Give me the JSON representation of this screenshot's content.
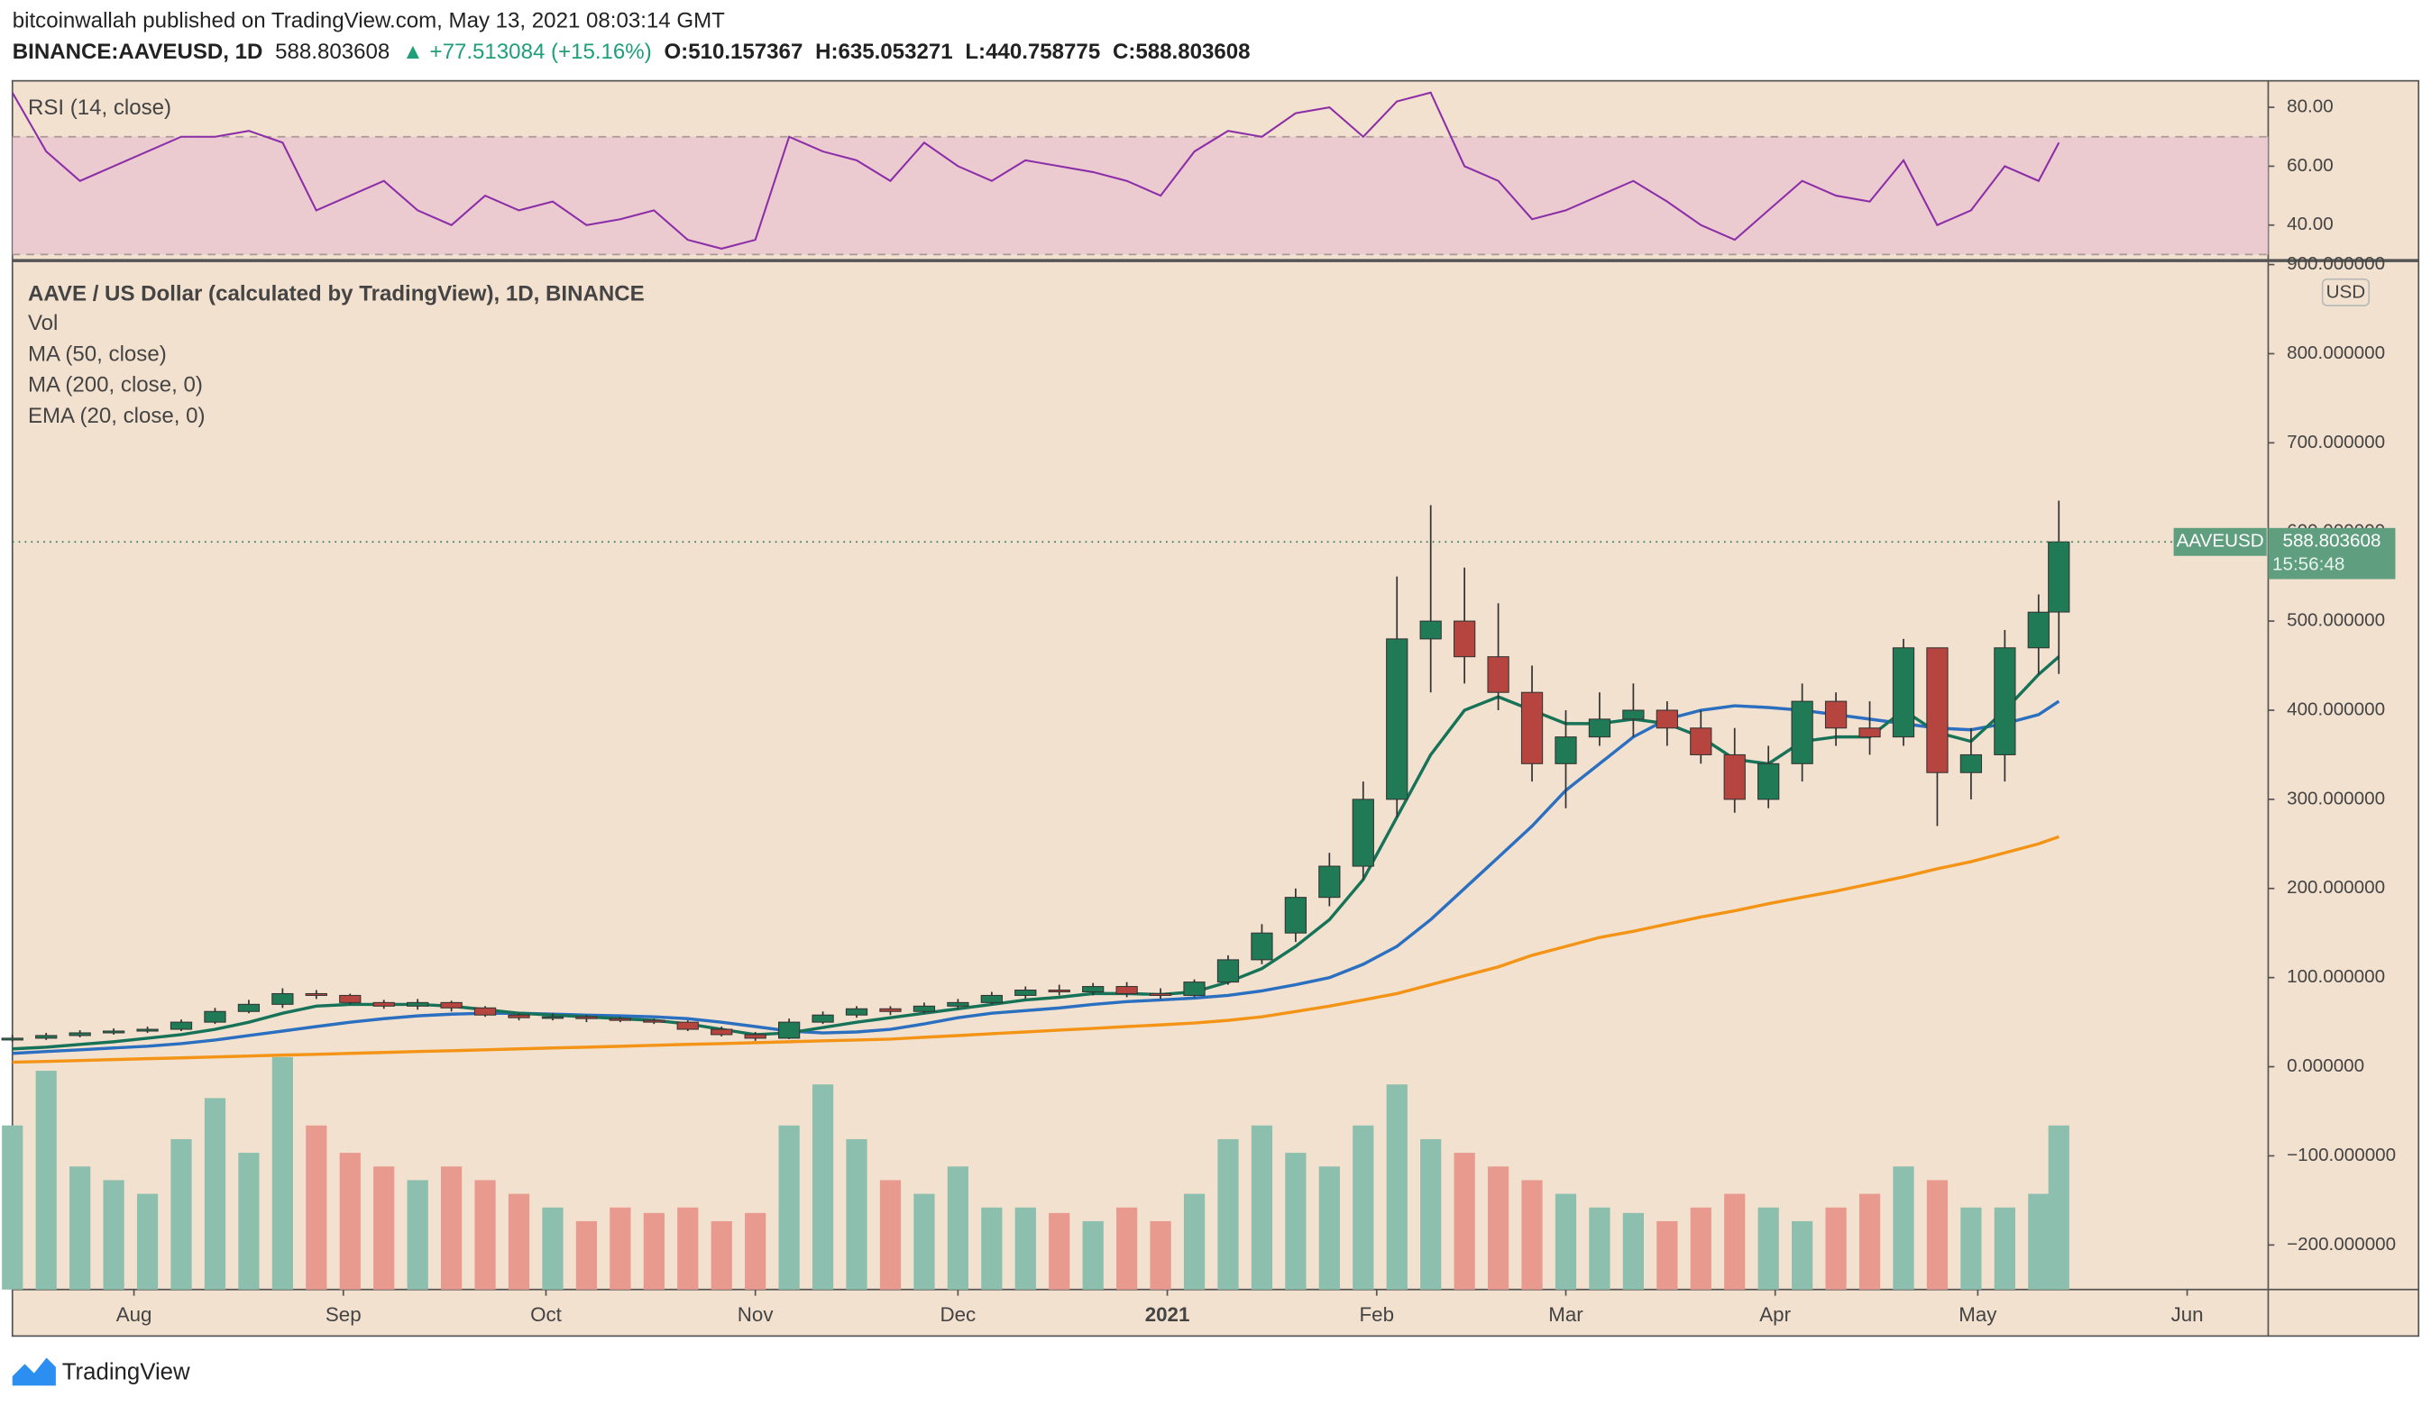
{
  "header": {
    "publisher": "bitcoinwallah published on TradingView.com, May 13, 2021 08:03:14 GMT",
    "symbol": "BINANCE:AAVEUSD, 1D",
    "last": "588.803608",
    "change": "▲ +77.513084 (+15.16%)",
    "open": "O:510.157367",
    "high": "H:635.053271",
    "low": "L:440.758775",
    "close": "C:588.803608"
  },
  "footer": {
    "brand": "TradingView"
  },
  "chart_data": [
    {
      "type": "candlestick",
      "title": "AAVE / US Dollar (calculated by TradingView), 1D, BINANCE",
      "legend": [
        "Vol",
        "MA (50, close)",
        "MA (200, close, 0)",
        "EMA (20, close, 0)"
      ],
      "currency": "USD",
      "price_tag": {
        "symbol": "AAVEUSD",
        "value": "588.803608",
        "countdown": "15:56:48"
      },
      "up_color": "#1f7a55",
      "down_color": "#b5453e",
      "volume_up_color": "#8cbfad",
      "volume_down_color": "#e89a8f",
      "grid": false,
      "xlim": [
        0,
        334
      ],
      "xticks": [
        {
          "value": 18,
          "label": "Aug"
        },
        {
          "value": 49,
          "label": "Sep"
        },
        {
          "value": 79,
          "label": "Oct"
        },
        {
          "value": 110,
          "label": "Nov"
        },
        {
          "value": 140,
          "label": "Dec"
        },
        {
          "value": 171,
          "label": "2021",
          "bold": true
        },
        {
          "value": 202,
          "label": "Feb"
        },
        {
          "value": 230,
          "label": "Mar"
        },
        {
          "value": 261,
          "label": "Apr"
        },
        {
          "value": 291,
          "label": "May"
        },
        {
          "value": 322,
          "label": "Jun"
        }
      ],
      "ylim": [
        -250,
        901
      ],
      "yticks": [
        {
          "value": -200,
          "label": "−200.000000"
        },
        {
          "value": -100,
          "label": "−100.000000"
        },
        {
          "value": 0,
          "label": "0.000000"
        },
        {
          "value": 100,
          "label": "100.000000"
        },
        {
          "value": 200,
          "label": "200.000000"
        },
        {
          "value": 300,
          "label": "300.000000"
        },
        {
          "value": 400,
          "label": "400.000000"
        },
        {
          "value": 500,
          "label": "500.000000"
        },
        {
          "value": 600,
          "label": "600.000000"
        },
        {
          "value": 700,
          "label": "700.000000"
        },
        {
          "value": 800,
          "label": "800.000000"
        },
        {
          "value": 900,
          "label": "900.000000"
        }
      ],
      "x": [
        0,
        5,
        10,
        15,
        20,
        25,
        30,
        35,
        40,
        45,
        50,
        55,
        60,
        65,
        70,
        75,
        80,
        85,
        90,
        95,
        100,
        105,
        110,
        115,
        120,
        125,
        130,
        135,
        140,
        145,
        150,
        155,
        160,
        165,
        170,
        175,
        180,
        185,
        190,
        195,
        200,
        205,
        210,
        215,
        220,
        225,
        230,
        235,
        240,
        245,
        250,
        255,
        260,
        265,
        270,
        275,
        280,
        285,
        290,
        295,
        300,
        303
      ],
      "open": [
        30,
        32,
        35,
        38,
        40,
        42,
        50,
        62,
        70,
        82,
        80,
        72,
        68,
        72,
        66,
        58,
        55,
        56,
        54,
        52,
        50,
        42,
        36,
        32,
        50,
        58,
        65,
        62,
        68,
        72,
        80,
        86,
        84,
        90,
        82,
        80,
        95,
        120,
        150,
        190,
        225,
        300,
        480,
        500,
        460,
        420,
        340,
        370,
        390,
        400,
        380,
        350,
        300,
        340,
        410,
        380,
        370,
        470,
        330,
        350,
        470,
        510.157367
      ],
      "high": [
        36,
        38,
        41,
        43,
        45,
        53,
        66,
        75,
        88,
        86,
        82,
        75,
        76,
        74,
        68,
        60,
        60,
        58,
        56,
        54,
        52,
        45,
        39,
        54,
        62,
        68,
        68,
        72,
        76,
        84,
        90,
        92,
        94,
        95,
        88,
        98,
        125,
        160,
        200,
        240,
        320,
        550,
        630,
        560,
        520,
        450,
        400,
        420,
        430,
        410,
        400,
        380,
        360,
        430,
        420,
        410,
        480,
        470,
        380,
        490,
        530,
        635.053271
      ],
      "low": [
        28,
        30,
        33,
        36,
        38,
        40,
        48,
        60,
        66,
        76,
        70,
        65,
        64,
        62,
        56,
        52,
        52,
        50,
        50,
        48,
        40,
        34,
        29,
        31,
        48,
        55,
        58,
        60,
        65,
        70,
        76,
        80,
        80,
        78,
        76,
        78,
        92,
        115,
        140,
        180,
        210,
        280,
        420,
        430,
        400,
        320,
        290,
        360,
        370,
        360,
        340,
        285,
        290,
        320,
        360,
        350,
        360,
        270,
        300,
        320,
        440,
        440.758775
      ],
      "close": [
        32,
        35,
        38,
        40,
        42,
        50,
        62,
        70,
        82,
        80,
        72,
        68,
        72,
        66,
        58,
        55,
        56,
        54,
        52,
        50,
        42,
        36,
        32,
        50,
        58,
        65,
        62,
        68,
        72,
        80,
        86,
        84,
        90,
        82,
        80,
        95,
        120,
        150,
        190,
        225,
        300,
        480,
        500,
        460,
        420,
        340,
        370,
        390,
        400,
        380,
        350,
        300,
        340,
        410,
        380,
        370,
        470,
        330,
        350,
        470,
        510,
        588.803608
      ],
      "volume": [
        60,
        80,
        45,
        40,
        35,
        55,
        70,
        50,
        85,
        60,
        50,
        45,
        40,
        45,
        40,
        35,
        30,
        25,
        30,
        28,
        30,
        25,
        28,
        60,
        75,
        55,
        40,
        35,
        45,
        30,
        30,
        28,
        25,
        30,
        25,
        35,
        55,
        60,
        50,
        45,
        60,
        75,
        55,
        50,
        45,
        40,
        35,
        30,
        28,
        25,
        30,
        35,
        30,
        25,
        30,
        35,
        45,
        40,
        30,
        30,
        35,
        60
      ],
      "series": [
        {
          "name": "MA (50, close)",
          "color": "#2a6fc0",
          "values": [
            15,
            17,
            19,
            21,
            23,
            26,
            30,
            35,
            40,
            45,
            50,
            54,
            57,
            59,
            60,
            60,
            59,
            58,
            57,
            56,
            54,
            50,
            45,
            40,
            38,
            39,
            42,
            48,
            55,
            60,
            63,
            66,
            70,
            73,
            75,
            77,
            80,
            85,
            92,
            100,
            115,
            135,
            165,
            200,
            235,
            270,
            310,
            340,
            370,
            390,
            400,
            405,
            403,
            400,
            395,
            390,
            385,
            380,
            378,
            385,
            395,
            410
          ]
        },
        {
          "name": "MA (200, close, 0)",
          "color": "#f39416",
          "values": [
            5,
            6,
            7,
            8,
            9,
            10,
            11,
            12,
            13,
            14,
            15,
            16,
            17,
            18,
            19,
            20,
            21,
            22,
            23,
            24,
            25,
            26,
            27,
            28,
            29,
            30,
            31,
            33,
            35,
            37,
            39,
            41,
            43,
            45,
            47,
            49,
            52,
            56,
            62,
            68,
            75,
            82,
            92,
            102,
            112,
            125,
            135,
            145,
            152,
            160,
            168,
            175,
            183,
            190,
            197,
            205,
            213,
            222,
            230,
            240,
            250,
            258
          ]
        },
        {
          "name": "EMA (20, close, 0)",
          "color": "#167358",
          "values": [
            20,
            22,
            25,
            28,
            32,
            36,
            42,
            50,
            60,
            68,
            70,
            70,
            70,
            68,
            64,
            60,
            58,
            56,
            54,
            52,
            48,
            42,
            36,
            38,
            44,
            50,
            55,
            60,
            65,
            70,
            75,
            78,
            82,
            82,
            81,
            84,
            95,
            110,
            135,
            165,
            210,
            280,
            350,
            400,
            415,
            400,
            385,
            385,
            390,
            385,
            370,
            345,
            340,
            365,
            370,
            370,
            400,
            375,
            365,
            400,
            440,
            460
          ]
        }
      ]
    },
    {
      "type": "line",
      "title": "RSI (14, close)",
      "color": "#8b2ea8",
      "band": [
        30,
        70
      ],
      "ylim": [
        29,
        89
      ],
      "yticks": [
        {
          "value": 40,
          "label": "40.00"
        },
        {
          "value": 60,
          "label": "60.00"
        },
        {
          "value": 80,
          "label": "80.00"
        }
      ],
      "x": [
        0,
        5,
        10,
        15,
        20,
        25,
        30,
        35,
        40,
        45,
        50,
        55,
        60,
        65,
        70,
        75,
        80,
        85,
        90,
        95,
        100,
        105,
        110,
        115,
        120,
        125,
        130,
        135,
        140,
        145,
        150,
        155,
        160,
        165,
        170,
        175,
        180,
        185,
        190,
        195,
        200,
        205,
        210,
        215,
        220,
        225,
        230,
        235,
        240,
        245,
        250,
        255,
        260,
        265,
        270,
        275,
        280,
        285,
        290,
        295,
        300,
        303
      ],
      "values": [
        85,
        65,
        55,
        60,
        65,
        70,
        70,
        72,
        68,
        45,
        50,
        55,
        45,
        40,
        50,
        45,
        48,
        40,
        42,
        45,
        35,
        32,
        35,
        70,
        65,
        62,
        55,
        68,
        60,
        55,
        62,
        60,
        58,
        55,
        50,
        65,
        72,
        70,
        78,
        80,
        70,
        82,
        85,
        60,
        55,
        42,
        45,
        50,
        55,
        48,
        40,
        35,
        45,
        55,
        50,
        48,
        62,
        40,
        45,
        60,
        55,
        68
      ]
    }
  ]
}
